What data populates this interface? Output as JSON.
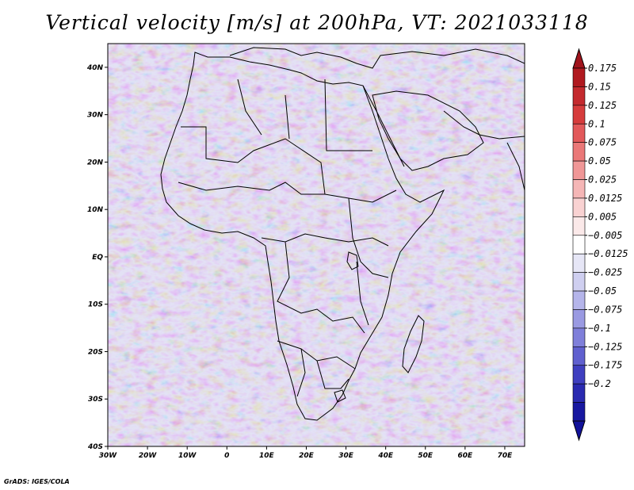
{
  "title": "Vertical velocity [m/s] at 200hPa, VT: 2021033118",
  "footer": "GrADS: IGES/COLA",
  "map": {
    "lon_range": [
      -30,
      75
    ],
    "lat_range": [
      -40,
      45
    ],
    "x_ticks": [
      {
        "lon": -30,
        "label": "30W"
      },
      {
        "lon": -20,
        "label": "20W"
      },
      {
        "lon": -10,
        "label": "10W"
      },
      {
        "lon": 0,
        "label": "0"
      },
      {
        "lon": 10,
        "label": "10E"
      },
      {
        "lon": 20,
        "label": "20E"
      },
      {
        "lon": 30,
        "label": "30E"
      },
      {
        "lon": 40,
        "label": "40E"
      },
      {
        "lon": 50,
        "label": "50E"
      },
      {
        "lon": 60,
        "label": "60E"
      },
      {
        "lon": 70,
        "label": "70E"
      }
    ],
    "y_ticks": [
      {
        "lat": 40,
        "label": "40N"
      },
      {
        "lat": 30,
        "label": "30N"
      },
      {
        "lat": 20,
        "label": "20N"
      },
      {
        "lat": 10,
        "label": "10N"
      },
      {
        "lat": 0,
        "label": "EQ"
      },
      {
        "lat": -10,
        "label": "10S"
      },
      {
        "lat": -20,
        "label": "20S"
      },
      {
        "lat": -30,
        "label": "30S"
      },
      {
        "lat": -40,
        "label": "40S"
      }
    ]
  },
  "colorbar": {
    "levels": [
      "0.175",
      "0.15",
      "0.125",
      "0.1",
      "0.075",
      "0.05",
      "0.025",
      "0.0125",
      "0.005",
      "−0.005",
      "−0.0125",
      "−0.025",
      "−0.05",
      "−0.075",
      "−0.1",
      "−0.125",
      "−0.175",
      "−0.2"
    ],
    "colors": [
      "#b01a20",
      "#c42a2e",
      "#d63c3c",
      "#e2595a",
      "#ea7878",
      "#f09797",
      "#f5b6b6",
      "#f9d2d2",
      "#fbe9e9",
      "#ffffff",
      "#e6e6f6",
      "#cfcff0",
      "#b5b5ea",
      "#9a9ae2",
      "#7f7fda",
      "#6060cf",
      "#3f3fc0",
      "#2a2ab0",
      "#1818a0"
    ],
    "top_color": "#a0141c",
    "bottom_color": "#12129a"
  }
}
